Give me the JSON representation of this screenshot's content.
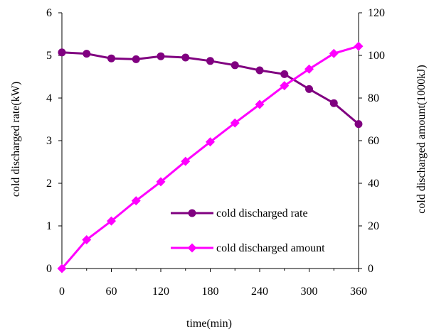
{
  "chart_data": {
    "type": "line",
    "title": "",
    "xlabel": "time(min)",
    "ylabel_left": "cold discharged rate(kW)",
    "ylabel_right": "cold discharged amount(1000kJ)",
    "x_ticks": [
      "0",
      "60",
      "120",
      "180",
      "240",
      "300",
      "360"
    ],
    "y_left_ticks": [
      "0",
      "1",
      "2",
      "3",
      "4",
      "5",
      "6"
    ],
    "y_right_ticks": [
      "0",
      "20",
      "40",
      "60",
      "80",
      "100",
      "120"
    ],
    "xlim": [
      0,
      360
    ],
    "ylim_left": [
      0,
      6
    ],
    "ylim_right": [
      0,
      120
    ],
    "grid": false,
    "legend_position": "lower-right inside plot",
    "series": [
      {
        "name": "cold discharged rate",
        "axis": "left",
        "color": "#800080",
        "marker": "circle",
        "x": [
          0,
          30,
          60,
          90,
          120,
          150,
          180,
          210,
          240,
          270,
          300,
          330,
          360
        ],
        "values": [
          5.07,
          5.04,
          4.93,
          4.91,
          4.98,
          4.95,
          4.87,
          4.77,
          4.65,
          4.56,
          4.21,
          3.88,
          3.39
        ]
      },
      {
        "name": "cold discharged amount",
        "axis": "right",
        "color": "#FF00FF",
        "marker": "diamond",
        "x": [
          0,
          30,
          60,
          90,
          120,
          150,
          180,
          210,
          240,
          270,
          300,
          330,
          360
        ],
        "values": [
          0,
          13.5,
          22.3,
          31.8,
          40.7,
          50.3,
          59.4,
          68.3,
          77.0,
          85.8,
          93.6,
          100.9,
          104.3
        ]
      }
    ]
  }
}
